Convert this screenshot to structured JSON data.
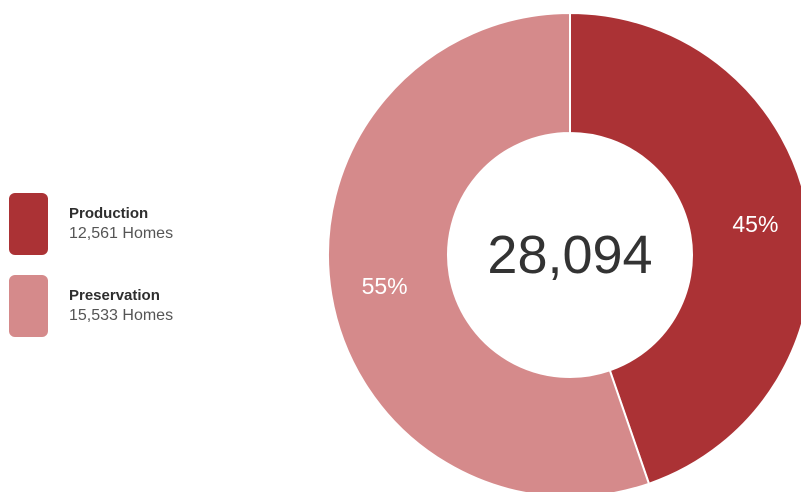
{
  "colors": {
    "production": "#ab3235",
    "preservation": "#d58a8b",
    "center": "#ffffff",
    "slice_label": "#ffffff",
    "total_label": "#333333"
  },
  "legend": {
    "items": [
      {
        "key": "production",
        "name": "Production",
        "count": "12,561 Homes"
      },
      {
        "key": "preservation",
        "name": "Preservation",
        "count": "15,533 Homes"
      }
    ]
  },
  "chart_data": {
    "type": "pie",
    "variant": "donut",
    "total_label": "28,094",
    "start": "12 o'clock, clockwise",
    "slices": [
      {
        "name": "Production",
        "value": 12561,
        "label": "45%"
      },
      {
        "name": "Preservation",
        "value": 15533,
        "label": "55%"
      }
    ]
  }
}
